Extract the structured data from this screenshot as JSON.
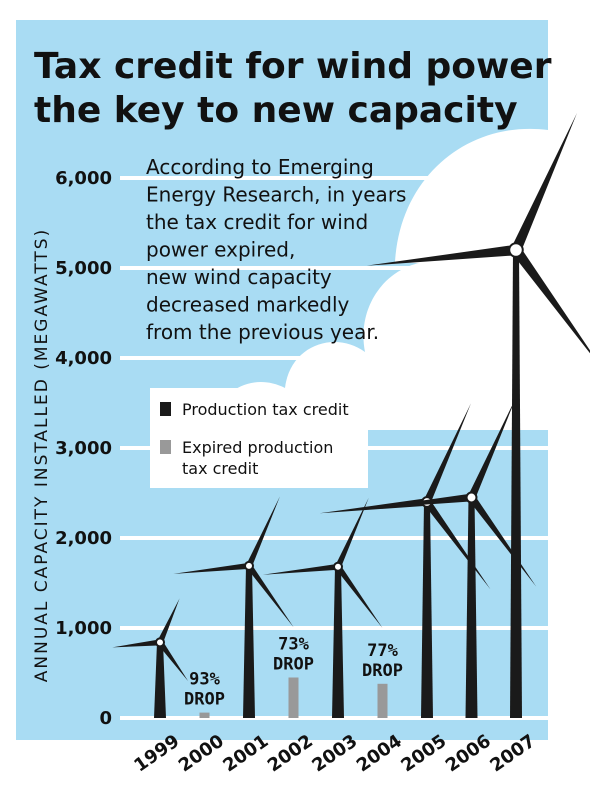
{
  "chart_data": {
    "type": "bar",
    "title": "Tax credit for wind power the key to new capacity",
    "title_lines": [
      "Tax credit for wind power",
      "the key to new capacity"
    ],
    "annotation_lines": [
      "According to Emerging",
      "Energy Research, in years",
      "the tax credit for wind",
      "power expired,",
      "new wind capacity",
      "decreased markedly",
      "from the previous year."
    ],
    "ylabel": "ANNUAL CAPACITY INSTALLED (MEGAWATTS)",
    "xlabel": "",
    "ylim": [
      0,
      6000
    ],
    "yticks": [
      "0",
      "1,000",
      "2,000",
      "3,000",
      "4,000",
      "5,000",
      "6,000"
    ],
    "categories": [
      "1999",
      "2000",
      "2001",
      "2002",
      "2003",
      "2004",
      "2005",
      "2006",
      "2007"
    ],
    "series": [
      {
        "name": "Production tax credit",
        "color": "#1a1a1a",
        "values": [
          840,
          null,
          1690,
          null,
          1680,
          null,
          2400,
          2450,
          5200
        ]
      },
      {
        "name": "Expired production tax credit",
        "color": "#999999",
        "values": [
          null,
          60,
          null,
          450,
          null,
          380,
          null,
          null,
          null
        ]
      }
    ],
    "drop_labels": [
      {
        "category": "2000",
        "lines": [
          "93%",
          "DROP"
        ]
      },
      {
        "category": "2002",
        "lines": [
          "73%",
          "DROP"
        ]
      },
      {
        "category": "2004",
        "lines": [
          "77%",
          "DROP"
        ]
      }
    ],
    "legend_placement": "center-left",
    "legend_lines": [
      [
        "Production tax credit"
      ],
      [
        "Expired production",
        "tax credit"
      ]
    ],
    "grid": true,
    "colors": {
      "background": "#a9dcf3",
      "cloud": "#ffffff",
      "gridline": "#ffffff",
      "turbine": "#1a1a1a",
      "expired": "#999999"
    }
  }
}
